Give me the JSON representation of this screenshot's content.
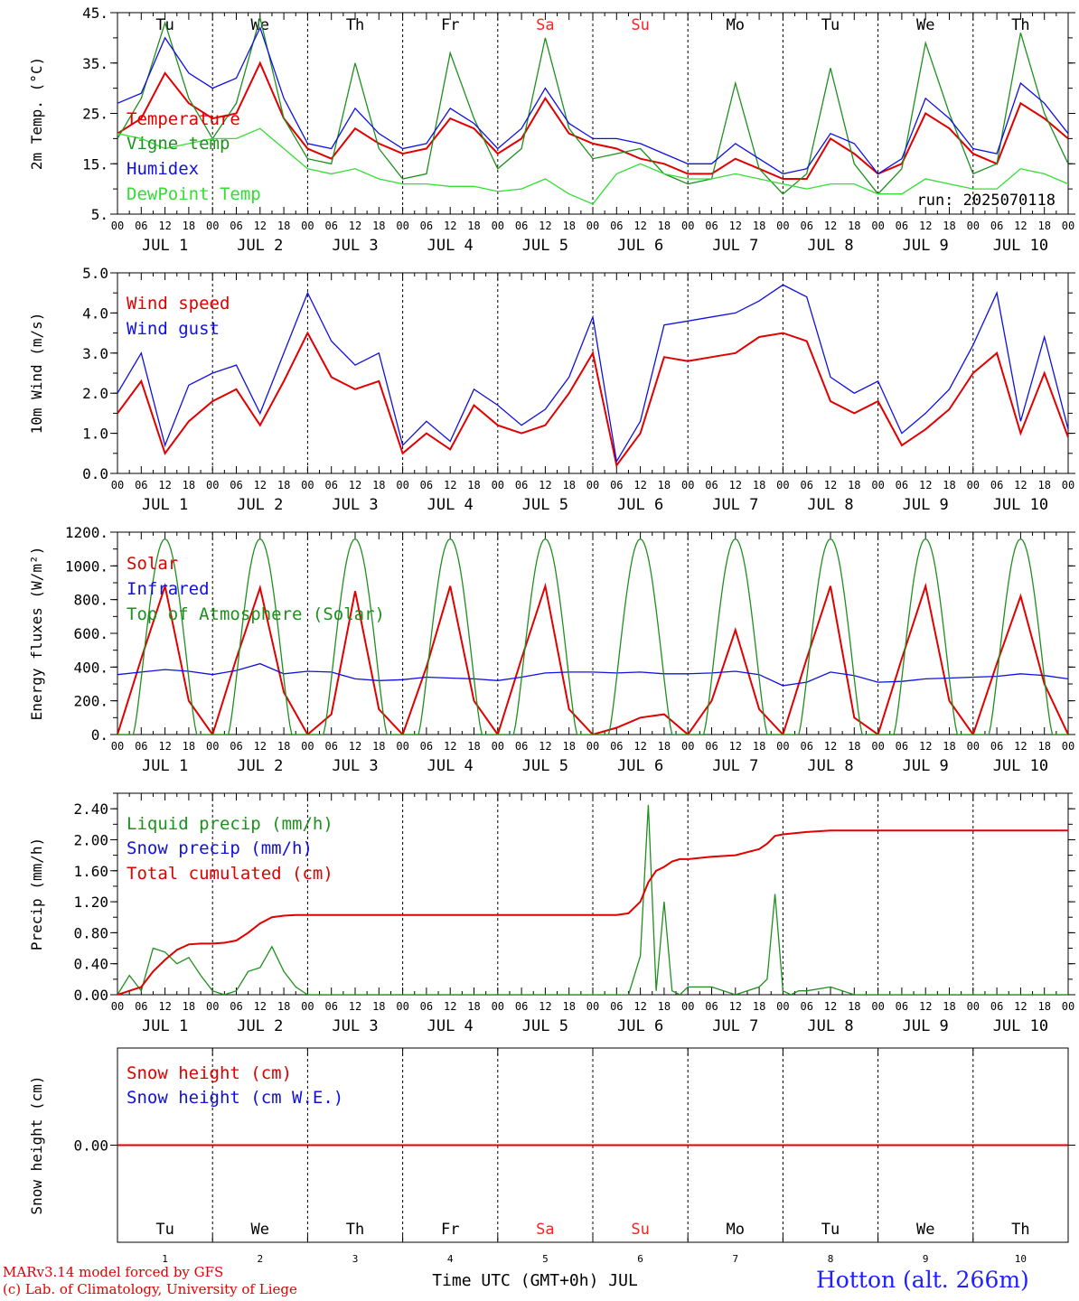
{
  "colors": {
    "red": "#e00000",
    "green": "#1f8f1f",
    "lightgreen": "#33dd33",
    "blue": "#1010e0",
    "axis": "#000000",
    "weekend": "#ff2020"
  },
  "days": {
    "weekday_labels": [
      "Tu",
      "We",
      "Th",
      "Fr",
      "Sa",
      "Su",
      "Mo",
      "Tu",
      "We",
      "Th"
    ],
    "weekend_flags": [
      false,
      false,
      false,
      false,
      true,
      true,
      false,
      false,
      false,
      false
    ],
    "date_labels": [
      "JUL  1",
      "JUL  2",
      "JUL  3",
      "JUL  4",
      "JUL  5",
      "JUL  6",
      "JUL  7",
      "JUL  8",
      "JUL  9",
      "JUL 10"
    ],
    "hour_labels": [
      "00",
      "06",
      "12",
      "18"
    ],
    "end_hour_label": "00",
    "day_numbers": [
      "1",
      "2",
      "3",
      "4",
      "5",
      "6",
      "7",
      "8",
      "9",
      "10"
    ]
  },
  "footer": {
    "xlabel": "Time UTC (GMT+0h) JUL",
    "credit_line1": "MARv3.14 model forced by GFS",
    "credit_line2": "(c) Lab. of Climatology, University of Liege",
    "station": "Hotton (alt. 266m)"
  },
  "chart_data": [
    {
      "type": "line",
      "ylabel": "2m Temp. (°C)",
      "ylim": [
        5,
        45
      ],
      "yticks": [
        5,
        15,
        25,
        35,
        45
      ],
      "ytick_labels": [
        "5.",
        "15.",
        "25.",
        "35.",
        "45."
      ],
      "run_label": "run: 2025070118",
      "x_hours": [
        0,
        6,
        12,
        18,
        24,
        30,
        36,
        42,
        48,
        54,
        60,
        66,
        72,
        78,
        84,
        90,
        96,
        102,
        108,
        114,
        120,
        126,
        132,
        138,
        144,
        150,
        156,
        162,
        168,
        174,
        180,
        186,
        192,
        198,
        204,
        210,
        216,
        222,
        228,
        234,
        240
      ],
      "series": [
        {
          "name": "Temperature",
          "color": "red",
          "values": [
            21,
            24,
            33,
            27,
            24,
            25,
            35,
            24,
            18,
            16,
            22,
            19,
            17,
            18,
            24,
            22,
            17,
            20,
            28,
            21,
            19,
            18,
            16,
            15,
            13,
            13,
            16,
            14,
            12,
            12,
            20,
            17,
            13,
            15,
            25,
            22,
            17,
            15,
            27,
            24,
            20
          ]
        },
        {
          "name": "Vigne temp",
          "color": "green",
          "values": [
            20,
            28,
            43,
            28,
            20,
            27,
            44,
            24,
            16,
            15,
            35,
            18,
            12,
            13,
            37,
            24,
            14,
            18,
            40,
            22,
            16,
            17,
            18,
            13,
            11,
            12,
            31,
            14,
            9,
            13,
            34,
            15,
            9,
            14,
            39,
            25,
            13,
            15,
            41,
            25,
            15
          ]
        },
        {
          "name": "Humidex",
          "color": "blue",
          "values": [
            27,
            29,
            40,
            33,
            30,
            32,
            42,
            28,
            19,
            18,
            26,
            21,
            18,
            19,
            26,
            23,
            18,
            22,
            30,
            23,
            20,
            20,
            19,
            17,
            15,
            15,
            19,
            16,
            13,
            14,
            21,
            19,
            13,
            16,
            28,
            24,
            18,
            17,
            31,
            27,
            21
          ]
        },
        {
          "name": "DewPoint Temp",
          "color": "lightgreen",
          "values": [
            21,
            20,
            18,
            19,
            20,
            20,
            22,
            18,
            14,
            13,
            14,
            12,
            11,
            11,
            10.5,
            10.5,
            9.5,
            10,
            12,
            9,
            7,
            13,
            15,
            13,
            12,
            12,
            13,
            12,
            11,
            10,
            11,
            11,
            9,
            9,
            12,
            11,
            10,
            10,
            14,
            13,
            11
          ]
        }
      ]
    },
    {
      "type": "line",
      "ylabel": "10m Wind (m/s)",
      "ylim": [
        0,
        5
      ],
      "yticks": [
        0,
        1,
        2,
        3,
        4,
        5
      ],
      "ytick_labels": [
        "0.0",
        "1.0",
        "2.0",
        "3.0",
        "4.0",
        "5.0"
      ],
      "x_hours": [
        0,
        6,
        12,
        18,
        24,
        30,
        36,
        42,
        48,
        54,
        60,
        66,
        72,
        78,
        84,
        90,
        96,
        102,
        108,
        114,
        120,
        126,
        132,
        138,
        144,
        150,
        156,
        162,
        168,
        174,
        180,
        186,
        192,
        198,
        204,
        210,
        216,
        222,
        228,
        234,
        240
      ],
      "series": [
        {
          "name": "Wind speed",
          "color": "red",
          "values": [
            1.5,
            2.3,
            0.5,
            1.3,
            1.8,
            2.1,
            1.2,
            2.3,
            3.5,
            2.4,
            2.1,
            2.3,
            0.5,
            1.0,
            0.6,
            1.7,
            1.2,
            1.0,
            1.2,
            2.0,
            3.0,
            0.2,
            1.0,
            2.9,
            2.8,
            2.9,
            3.0,
            3.4,
            3.5,
            3.3,
            1.8,
            1.5,
            1.8,
            0.7,
            1.1,
            1.6,
            2.5,
            3.0,
            1.0,
            2.5,
            0.9
          ]
        },
        {
          "name": "Wind gust",
          "color": "blue",
          "values": [
            2.0,
            3.0,
            0.7,
            2.2,
            2.5,
            2.7,
            1.5,
            3.0,
            4.5,
            3.3,
            2.7,
            3.0,
            0.7,
            1.3,
            0.8,
            2.1,
            1.7,
            1.2,
            1.6,
            2.4,
            3.9,
            0.3,
            1.3,
            3.7,
            3.8,
            3.9,
            4.0,
            4.3,
            4.7,
            4.4,
            2.4,
            2.0,
            2.3,
            1.0,
            1.5,
            2.1,
            3.2,
            4.5,
            1.3,
            3.4,
            1.1
          ]
        }
      ]
    },
    {
      "type": "line",
      "ylabel": "Energy fluxes (W/m²)",
      "ylim": [
        0,
        1200
      ],
      "yticks": [
        0,
        200,
        400,
        600,
        800,
        1000,
        1200
      ],
      "ytick_labels": [
        "0.",
        "200.",
        "400.",
        "600.",
        "800.",
        "1000.",
        "1200."
      ],
      "x_hours": [
        0,
        6,
        12,
        18,
        24,
        30,
        36,
        42,
        48,
        54,
        60,
        66,
        72,
        78,
        84,
        90,
        96,
        102,
        108,
        114,
        120,
        126,
        132,
        138,
        144,
        150,
        156,
        162,
        168,
        174,
        180,
        186,
        192,
        198,
        204,
        210,
        216,
        222,
        228,
        234,
        240
      ],
      "series": [
        {
          "name": "Solar",
          "color": "red",
          "values": [
            0,
            450,
            880,
            200,
            0,
            450,
            870,
            250,
            0,
            120,
            850,
            150,
            0,
            400,
            880,
            200,
            0,
            450,
            880,
            150,
            0,
            40,
            100,
            120,
            0,
            200,
            620,
            150,
            0,
            450,
            880,
            100,
            0,
            450,
            880,
            200,
            0,
            420,
            820,
            300,
            0
          ]
        },
        {
          "name": "Infrared",
          "color": "blue",
          "values": [
            355,
            370,
            385,
            375,
            355,
            380,
            420,
            360,
            375,
            370,
            330,
            320,
            325,
            340,
            335,
            330,
            320,
            340,
            365,
            370,
            370,
            365,
            370,
            360,
            360,
            365,
            375,
            355,
            290,
            310,
            370,
            350,
            310,
            315,
            330,
            335,
            340,
            345,
            360,
            350,
            330
          ]
        },
        {
          "name": "Top of Atmosphere (Solar)",
          "color": "green",
          "curve": "daily_top_of_atmosphere",
          "peak": 1160,
          "sunrise_hour": 4,
          "sunset_hour": 20
        }
      ]
    },
    {
      "type": "line",
      "ylabel": "Precip (mm/h)",
      "ylim": [
        0,
        2.6
      ],
      "yticks": [
        0,
        0.4,
        0.8,
        1.2,
        1.6,
        2.0,
        2.4
      ],
      "ytick_labels": [
        "0.00",
        "0.40",
        "0.80",
        "1.20",
        "1.60",
        "2.00",
        "2.40"
      ],
      "x_hours": [
        0,
        3,
        6,
        9,
        12,
        15,
        18,
        21,
        24,
        27,
        30,
        33,
        36,
        39,
        42,
        45,
        48,
        60,
        72,
        96,
        120,
        126,
        129,
        132,
        134,
        136,
        138,
        140,
        142,
        144,
        150,
        156,
        162,
        164,
        166,
        168,
        170,
        172,
        174,
        180,
        186,
        192,
        210,
        240
      ],
      "series": [
        {
          "name": "Liquid precip (mm/h)",
          "color": "green",
          "values": [
            0,
            0.25,
            0.05,
            0.6,
            0.55,
            0.4,
            0.48,
            0.25,
            0.05,
            0,
            0.05,
            0.3,
            0.35,
            0.62,
            0.3,
            0.1,
            0,
            0,
            0,
            0,
            0,
            0,
            0,
            0.5,
            2.45,
            0.05,
            1.2,
            0.05,
            0,
            0.1,
            0.1,
            0,
            0.1,
            0.2,
            1.3,
            0.05,
            0,
            0.05,
            0.05,
            0.1,
            0,
            0,
            0,
            0
          ]
        },
        {
          "name": "Total cumulated (cm)",
          "color": "red",
          "values": [
            0,
            0.05,
            0.1,
            0.3,
            0.45,
            0.58,
            0.65,
            0.66,
            0.66,
            0.67,
            0.7,
            0.8,
            0.92,
            1.0,
            1.02,
            1.03,
            1.03,
            1.03,
            1.03,
            1.03,
            1.03,
            1.03,
            1.05,
            1.2,
            1.45,
            1.6,
            1.65,
            1.72,
            1.75,
            1.75,
            1.78,
            1.8,
            1.88,
            1.95,
            2.05,
            2.07,
            2.08,
            2.09,
            2.1,
            2.12,
            2.12,
            2.12,
            2.12,
            2.12
          ]
        },
        {
          "name": "Snow precip (mm/h)",
          "color": "blue",
          "values": []
        }
      ]
    },
    {
      "type": "line",
      "ylabel": "Snow height (cm)",
      "ylim": [
        -1,
        1
      ],
      "yticks": [
        0
      ],
      "ytick_labels": [
        "0.00"
      ],
      "x_hours": [
        0,
        240
      ],
      "series": [
        {
          "name": "Snow height (cm)",
          "color": "red",
          "values": [
            0,
            0
          ]
        },
        {
          "name": "Snow height (cm W.E.)",
          "color": "blue",
          "values": []
        }
      ]
    }
  ]
}
